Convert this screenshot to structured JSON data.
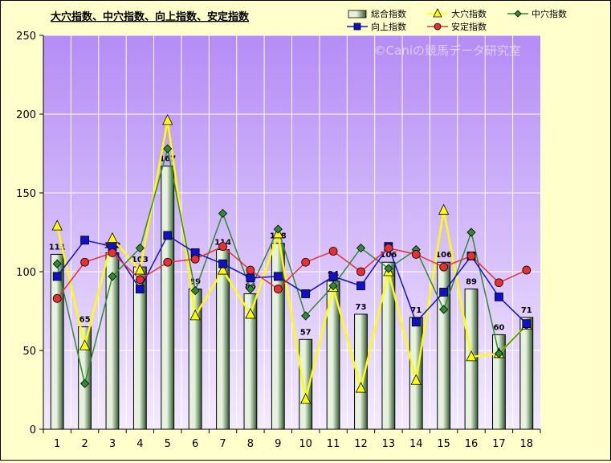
{
  "colors": {
    "background": "#ffffcc",
    "plot_top": "#b48cf5",
    "plot_bottom": "#f4eaff",
    "bar_fill_light": "#e6f2de",
    "bar_fill_dark": "#2f5a2a",
    "oana": "#ffff00",
    "chuana": "#2e8b2e",
    "kojo": "#1010c8",
    "antei": "#e83030"
  },
  "watermark": "©Caniの競馬データ研究室",
  "chart_data": {
    "type": "bar",
    "title": "大穴指数、中穴指数、向上指数、安定指数",
    "xlabel": "",
    "ylabel": "",
    "ylim": [
      0,
      250
    ],
    "yticks": [
      0,
      50,
      100,
      150,
      200,
      250
    ],
    "grid": true,
    "legend_position": "top-right",
    "categories": [
      "1",
      "2",
      "3",
      "4",
      "5",
      "6",
      "7",
      "8",
      "9",
      "10",
      "11",
      "12",
      "13",
      "14",
      "15",
      "16",
      "17",
      "18"
    ],
    "series": [
      {
        "name": "総合指数",
        "kind": "bar",
        "color": "#5f8a52",
        "values": [
          111,
          65,
          112,
          103,
          167,
          89,
          114,
          86,
          118,
          57,
          94,
          73,
          106,
          71,
          106,
          89,
          60,
          71
        ]
      },
      {
        "name": "大穴指数",
        "kind": "line",
        "marker": "triangle",
        "color": "#ffff00",
        "values": [
          129,
          53,
          121,
          101,
          196,
          72,
          101,
          73,
          124,
          19,
          90,
          26,
          100,
          31,
          139,
          46,
          48,
          66
        ]
      },
      {
        "name": "中穴指数",
        "kind": "line",
        "marker": "diamond",
        "color": "#2e8b2e",
        "values": [
          105,
          29,
          97,
          115,
          178,
          88,
          137,
          89,
          127,
          72,
          91,
          115,
          102,
          114,
          76,
          125,
          48,
          66
        ]
      },
      {
        "name": "向上指数",
        "kind": "line",
        "marker": "square",
        "color": "#1010c8",
        "values": [
          97,
          120,
          116,
          89,
          123,
          112,
          105,
          96,
          97,
          86,
          97,
          91,
          116,
          68,
          87,
          110,
          84,
          67
        ]
      },
      {
        "name": "安定指数",
        "kind": "line",
        "marker": "circle",
        "color": "#e83030",
        "values": [
          83,
          106,
          112,
          95,
          106,
          108,
          116,
          101,
          89,
          106,
          113,
          100,
          115,
          111,
          103,
          110,
          93,
          101
        ]
      }
    ]
  }
}
